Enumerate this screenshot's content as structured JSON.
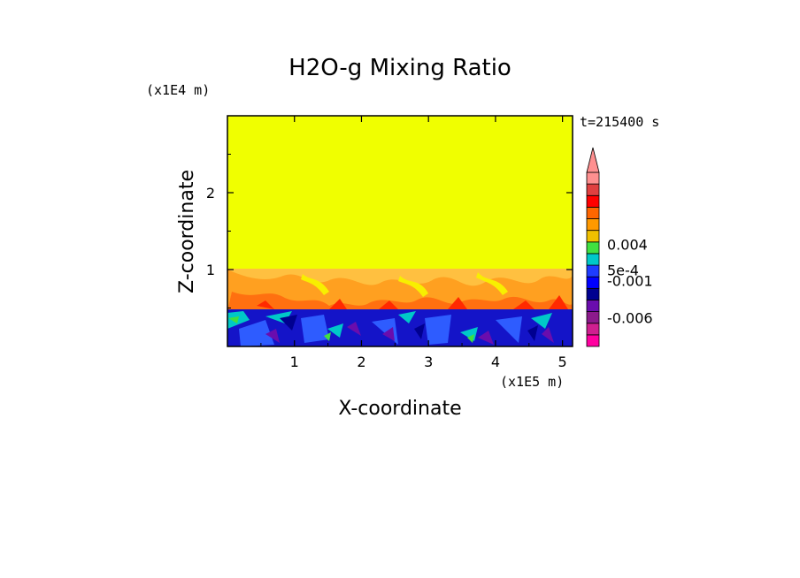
{
  "chart_data": {
    "type": "heatmap",
    "title": "H2O-g Mixing Ratio",
    "xlabel": "X-coordinate",
    "ylabel": "Z-coordinate",
    "x_unit": "(x1E5 m)",
    "y_unit": "(x1E4 m)",
    "time_label": "t=215400 s",
    "xlim": [
      0,
      5.15
    ],
    "ylim": [
      0,
      3
    ],
    "x_ticks": [
      1,
      2,
      3,
      4,
      5
    ],
    "x_tick_labels": [
      "1",
      "2",
      "3",
      "4",
      "5"
    ],
    "y_ticks": [
      1,
      2
    ],
    "y_tick_labels": [
      "1",
      "2"
    ],
    "colorbar": {
      "colors": [
        "#ff00a0",
        "#d02090",
        "#8c1a8c",
        "#6a0dad",
        "#000090",
        "#0000ff",
        "#1e3cff",
        "#00c8c8",
        "#40e040",
        "#f0c000",
        "#ff9900",
        "#ff6600",
        "#ff0000",
        "#e04040",
        "#ff9090"
      ],
      "labels": [
        {
          "text": "-0.006",
          "level": 2.4
        },
        {
          "text": "-0.001",
          "level": 5.6
        },
        {
          "text": "5e-4",
          "level": 6.5
        },
        {
          "text": "0.004",
          "level": 8.7
        }
      ],
      "extend": "max"
    },
    "regions": [
      {
        "name": "upper",
        "z_range": [
          1.0,
          3.0
        ],
        "color": "#f0ff00"
      },
      {
        "name": "mid",
        "z_range": [
          0.5,
          1.0
        ],
        "color": "#ffbf40"
      },
      {
        "name": "lower",
        "z_range": [
          0.0,
          0.5
        ],
        "color": "#1010c8"
      }
    ]
  }
}
